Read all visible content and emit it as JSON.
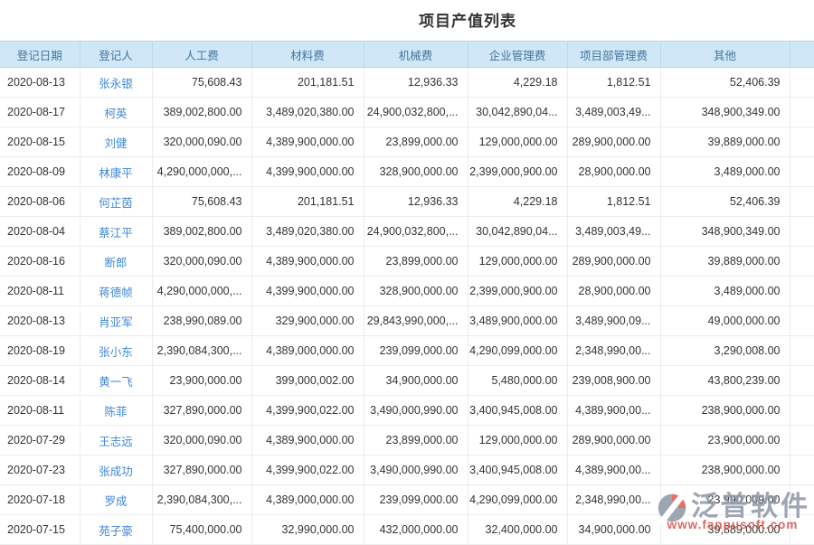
{
  "title": "项目产值列表",
  "table": {
    "columns": [
      "登记日期",
      "登记人",
      "人工费",
      "材料费",
      "机械费",
      "企业管理费",
      "项目部管理费",
      "其他"
    ],
    "rows": [
      [
        "2020-08-13",
        "张永银",
        "75,608.43",
        "201,181.51",
        "12,936.33",
        "4,229.18",
        "1,812.51",
        "52,406.39"
      ],
      [
        "2020-08-17",
        "柯英",
        "389,002,800.00",
        "3,489,020,380.00",
        "24,900,032,800,...",
        "30,042,890,04...",
        "3,489,003,49...",
        "348,900,349.00"
      ],
      [
        "2020-08-15",
        "刘健",
        "320,000,090.00",
        "4,389,900,000.00",
        "23,899,000.00",
        "129,000,000.00",
        "289,900,000.00",
        "39,889,000.00"
      ],
      [
        "2020-08-09",
        "林康平",
        "4,290,000,000,...",
        "4,399,900,000.00",
        "328,900,000.00",
        "2,399,000,900.00",
        "28,900,000.00",
        "3,489,000.00"
      ],
      [
        "2020-08-06",
        "何芷茵",
        "75,608.43",
        "201,181.51",
        "12,936.33",
        "4,229.18",
        "1,812.51",
        "52,406.39"
      ],
      [
        "2020-08-04",
        "蔡江平",
        "389,002,800.00",
        "3,489,020,380.00",
        "24,900,032,800,...",
        "30,042,890,04...",
        "3,489,003,49...",
        "348,900,349.00"
      ],
      [
        "2020-08-16",
        "断郎",
        "320,000,090.00",
        "4,389,900,000.00",
        "23,899,000.00",
        "129,000,000.00",
        "289,900,000.00",
        "39,889,000.00"
      ],
      [
        "2020-08-11",
        "蒋德帧",
        "4,290,000,000,...",
        "4,399,900,000.00",
        "328,900,000.00",
        "2,399,000,900.00",
        "28,900,000.00",
        "3,489,000.00"
      ],
      [
        "2020-08-13",
        "肖亚军",
        "238,990,089.00",
        "329,900,000.00",
        "29,843,990,000,...",
        "3,489,900,000.00",
        "3,489,900,09...",
        "49,000,000.00"
      ],
      [
        "2020-08-19",
        "张小东",
        "2,390,084,300,...",
        "4,389,000,000.00",
        "239,099,000.00",
        "4,290,099,000.00",
        "2,348,990,00...",
        "3,290,008.00"
      ],
      [
        "2020-08-14",
        "黄一飞",
        "23,900,000.00",
        "399,000,002.00",
        "34,900,000.00",
        "5,480,000.00",
        "239,008,900.00",
        "43,800,239.00"
      ],
      [
        "2020-08-11",
        "陈菲",
        "327,890,000.00",
        "4,399,900,022.00",
        "3,490,000,990.00",
        "3,400,945,008.00",
        "4,389,900,00...",
        "238,900,000.00"
      ],
      [
        "2020-07-29",
        "王志远",
        "320,000,090.00",
        "4,389,900,000.00",
        "23,899,000.00",
        "129,000,000.00",
        "289,900,000.00",
        "23,900,000.00"
      ],
      [
        "2020-07-23",
        "张成功",
        "327,890,000.00",
        "4,399,900,022.00",
        "3,490,000,990.00",
        "3,400,945,008.00",
        "4,389,900,00...",
        "238,900,000.00"
      ],
      [
        "2020-07-18",
        "罗成",
        "2,390,084,300,...",
        "4,389,000,000.00",
        "239,099,000.00",
        "4,290,099,000.00",
        "2,348,990,00...",
        "23,990,009.00"
      ],
      [
        "2020-07-15",
        "苑子豪",
        "75,400,000.00",
        "32,990,000.00",
        "432,000,000.00",
        "32,400,000.00",
        "34,900,000.00",
        "39,889,000.00"
      ]
    ]
  },
  "watermark": {
    "brand": "泛普软件",
    "url": "www.fanpusoft.com"
  },
  "colors": {
    "header_bg": "#cfe7f6",
    "header_text": "#46759e",
    "link_blue": "#3e87d6",
    "watermark_gray": "#8c96a4",
    "watermark_red": "#d95c56",
    "logo_orange": "#e2574c"
  }
}
